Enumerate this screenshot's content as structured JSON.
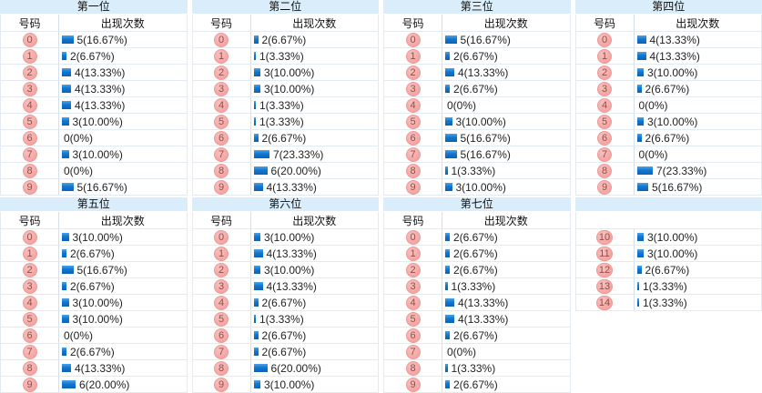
{
  "colors": {
    "title_band_bg": "#DAEDFB",
    "row_border": "#E3EAF1",
    "divider": "#D6DEE6",
    "bar_top": "#4AA3E9",
    "bar_mid": "#1277CF",
    "bar_bottom": "#0B62B8",
    "badge_bg": "#F4A5A2",
    "badge_border": "#EC9B98",
    "badge_text": "#8B4E4E",
    "text": "#222222"
  },
  "tables": [
    {
      "title": "第一位",
      "headers": {
        "number": "号码",
        "count": "出现次数"
      },
      "rows": [
        {
          "n": "0",
          "count": 5,
          "label": "5(16.67%)"
        },
        {
          "n": "1",
          "count": 2,
          "label": "2(6.67%)"
        },
        {
          "n": "2",
          "count": 4,
          "label": "4(13.33%)"
        },
        {
          "n": "3",
          "count": 4,
          "label": "4(13.33%)"
        },
        {
          "n": "4",
          "count": 4,
          "label": "4(13.33%)"
        },
        {
          "n": "5",
          "count": 3,
          "label": "3(10.00%)"
        },
        {
          "n": "6",
          "count": 0,
          "label": "0(0%)"
        },
        {
          "n": "7",
          "count": 3,
          "label": "3(10.00%)"
        },
        {
          "n": "8",
          "count": 0,
          "label": "0(0%)"
        },
        {
          "n": "9",
          "count": 5,
          "label": "5(16.67%)"
        }
      ]
    },
    {
      "title": "第二位",
      "headers": {
        "number": "号码",
        "count": "出现次数"
      },
      "rows": [
        {
          "n": "0",
          "count": 2,
          "label": "2(6.67%)"
        },
        {
          "n": "1",
          "count": 1,
          "label": "1(3.33%)"
        },
        {
          "n": "2",
          "count": 3,
          "label": "3(10.00%)"
        },
        {
          "n": "3",
          "count": 3,
          "label": "3(10.00%)"
        },
        {
          "n": "4",
          "count": 1,
          "label": "1(3.33%)"
        },
        {
          "n": "5",
          "count": 1,
          "label": "1(3.33%)"
        },
        {
          "n": "6",
          "count": 2,
          "label": "2(6.67%)"
        },
        {
          "n": "7",
          "count": 7,
          "label": "7(23.33%)"
        },
        {
          "n": "8",
          "count": 6,
          "label": "6(20.00%)"
        },
        {
          "n": "9",
          "count": 4,
          "label": "4(13.33%)"
        }
      ]
    },
    {
      "title": "第三位",
      "headers": {
        "number": "号码",
        "count": "出现次数"
      },
      "rows": [
        {
          "n": "0",
          "count": 5,
          "label": "5(16.67%)"
        },
        {
          "n": "1",
          "count": 2,
          "label": "2(6.67%)"
        },
        {
          "n": "2",
          "count": 4,
          "label": "4(13.33%)"
        },
        {
          "n": "3",
          "count": 2,
          "label": "2(6.67%)"
        },
        {
          "n": "4",
          "count": 0,
          "label": "0(0%)"
        },
        {
          "n": "5",
          "count": 3,
          "label": "3(10.00%)"
        },
        {
          "n": "6",
          "count": 5,
          "label": "5(16.67%)"
        },
        {
          "n": "7",
          "count": 5,
          "label": "5(16.67%)"
        },
        {
          "n": "8",
          "count": 1,
          "label": "1(3.33%)"
        },
        {
          "n": "9",
          "count": 3,
          "label": "3(10.00%)"
        }
      ]
    },
    {
      "title": "第四位",
      "headers": {
        "number": "号码",
        "count": "出现次数"
      },
      "rows": [
        {
          "n": "0",
          "count": 4,
          "label": "4(13.33%)"
        },
        {
          "n": "1",
          "count": 4,
          "label": "4(13.33%)"
        },
        {
          "n": "2",
          "count": 3,
          "label": "3(10.00%)"
        },
        {
          "n": "3",
          "count": 2,
          "label": "2(6.67%)"
        },
        {
          "n": "4",
          "count": 0,
          "label": "0(0%)"
        },
        {
          "n": "5",
          "count": 3,
          "label": "3(10.00%)"
        },
        {
          "n": "6",
          "count": 2,
          "label": "2(6.67%)"
        },
        {
          "n": "7",
          "count": 0,
          "label": "0(0%)"
        },
        {
          "n": "8",
          "count": 7,
          "label": "7(23.33%)"
        },
        {
          "n": "9",
          "count": 5,
          "label": "5(16.67%)"
        }
      ]
    },
    {
      "title": "第五位",
      "headers": {
        "number": "号码",
        "count": "出现次数"
      },
      "rows": [
        {
          "n": "0",
          "count": 3,
          "label": "3(10.00%)"
        },
        {
          "n": "1",
          "count": 2,
          "label": "2(6.67%)"
        },
        {
          "n": "2",
          "count": 5,
          "label": "5(16.67%)"
        },
        {
          "n": "3",
          "count": 2,
          "label": "2(6.67%)"
        },
        {
          "n": "4",
          "count": 3,
          "label": "3(10.00%)"
        },
        {
          "n": "5",
          "count": 3,
          "label": "3(10.00%)"
        },
        {
          "n": "6",
          "count": 0,
          "label": "0(0%)"
        },
        {
          "n": "7",
          "count": 2,
          "label": "2(6.67%)"
        },
        {
          "n": "8",
          "count": 4,
          "label": "4(13.33%)"
        },
        {
          "n": "9",
          "count": 6,
          "label": "6(20.00%)"
        }
      ]
    },
    {
      "title": "第六位",
      "headers": {
        "number": "号码",
        "count": "出现次数"
      },
      "rows": [
        {
          "n": "0",
          "count": 3,
          "label": "3(10.00%)"
        },
        {
          "n": "1",
          "count": 4,
          "label": "4(13.33%)"
        },
        {
          "n": "2",
          "count": 3,
          "label": "3(10.00%)"
        },
        {
          "n": "3",
          "count": 4,
          "label": "4(13.33%)"
        },
        {
          "n": "4",
          "count": 2,
          "label": "2(6.67%)"
        },
        {
          "n": "5",
          "count": 1,
          "label": "1(3.33%)"
        },
        {
          "n": "6",
          "count": 2,
          "label": "2(6.67%)"
        },
        {
          "n": "7",
          "count": 2,
          "label": "2(6.67%)"
        },
        {
          "n": "8",
          "count": 6,
          "label": "6(20.00%)"
        },
        {
          "n": "9",
          "count": 3,
          "label": "3(10.00%)"
        }
      ]
    },
    {
      "title": "第七位",
      "headers": {
        "number": "号码",
        "count": "出现次数"
      },
      "rows": [
        {
          "n": "0",
          "count": 2,
          "label": "2(6.67%)"
        },
        {
          "n": "1",
          "count": 2,
          "label": "2(6.67%)"
        },
        {
          "n": "2",
          "count": 2,
          "label": "2(6.67%)"
        },
        {
          "n": "3",
          "count": 1,
          "label": "1(3.33%)"
        },
        {
          "n": "4",
          "count": 4,
          "label": "4(13.33%)"
        },
        {
          "n": "5",
          "count": 4,
          "label": "4(13.33%)"
        },
        {
          "n": "6",
          "count": 2,
          "label": "2(6.67%)"
        },
        {
          "n": "7",
          "count": 0,
          "label": "0(0%)"
        },
        {
          "n": "8",
          "count": 1,
          "label": "1(3.33%)"
        },
        {
          "n": "9",
          "count": 2,
          "label": "2(6.67%)"
        }
      ]
    },
    {
      "title": "",
      "headers": {
        "number": "",
        "count": ""
      },
      "blank_header": true,
      "rows": [
        {
          "n": "10",
          "count": 3,
          "label": "3(10.00%)"
        },
        {
          "n": "11",
          "count": 3,
          "label": "3(10.00%)"
        },
        {
          "n": "12",
          "count": 2,
          "label": "2(6.67%)"
        },
        {
          "n": "13",
          "count": 1,
          "label": "1(3.33%)"
        },
        {
          "n": "14",
          "count": 1,
          "label": "1(3.33%)"
        }
      ]
    }
  ]
}
